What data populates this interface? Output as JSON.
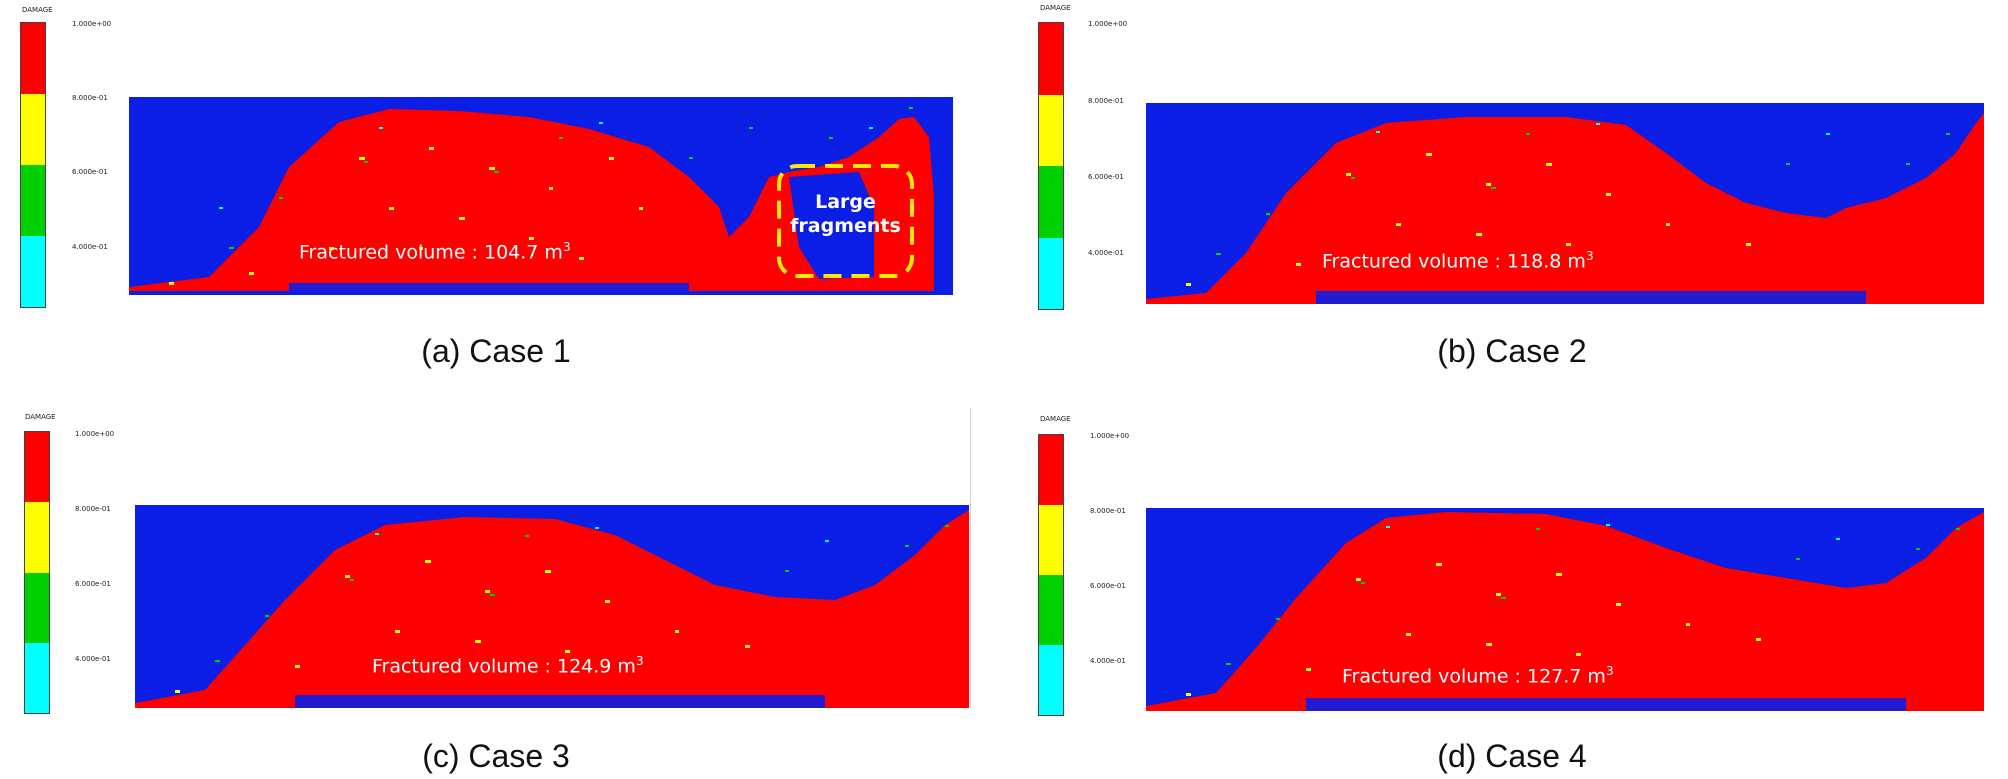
{
  "colorbar": {
    "title": "DAMAGE",
    "colors": [
      "#ff0000",
      "#ffff00",
      "#00d000",
      "#00ffff"
    ],
    "labels_a": [
      "1.000e+00",
      "8.000e-01",
      "6.000e-01",
      "4.000e-01"
    ],
    "labels_b": [
      "1.000e+00",
      "8.000e-01",
      "6.000e-01",
      "4.000e-01"
    ],
    "labels_c": [
      "1.000e+00",
      "8.000e-01",
      "6.000e-01",
      "4.000e-01"
    ],
    "labels_d": [
      "1.000e+00",
      "8.000e-01",
      "6.000e-01",
      "4.000e-01"
    ]
  },
  "colors": {
    "intact": "#0a1ee6",
    "damaged": "#ff0000",
    "highlight": "#ffea00"
  },
  "panels": [
    {
      "caption": "(a) Case 1",
      "fv_label": "Fractured volume : 104.7 m",
      "fv_unit_sup": "3"
    },
    {
      "caption": "(b) Case 2",
      "fv_label": "Fractured volume : 118.8 m",
      "fv_unit_sup": "3"
    },
    {
      "caption": "(c) Case 3",
      "fv_label": "Fractured volume : 124.9 m",
      "fv_unit_sup": "3"
    },
    {
      "caption": "(d) Case 4",
      "fv_label": "Fractured volume : 127.7 m",
      "fv_unit_sup": "3"
    }
  ],
  "annotation": {
    "line1": "Large",
    "line2": "fragments"
  }
}
